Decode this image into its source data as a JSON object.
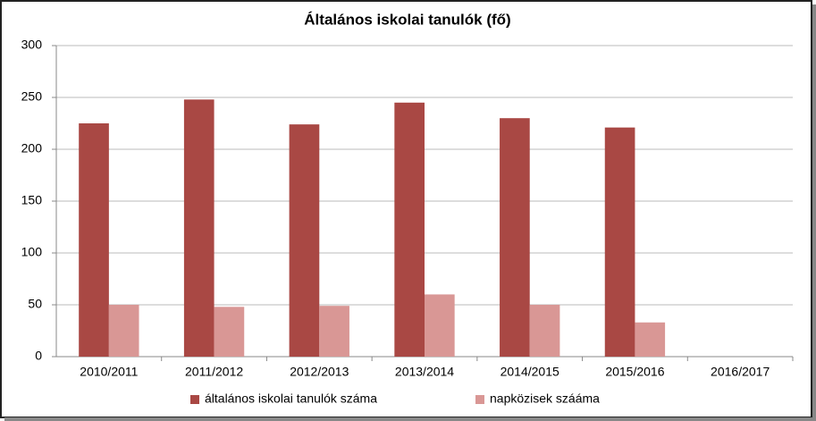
{
  "chart_data": {
    "type": "bar",
    "title": "Általános iskolai tanulók (fő)",
    "categories": [
      "2010/2011",
      "2011/2012",
      "2012/2013",
      "2013/2014",
      "2014/2015",
      "2015/2016",
      "2016/2017"
    ],
    "series": [
      {
        "name": "általános iskolai tanulók száma",
        "color": "#a94844",
        "values": [
          225,
          248,
          224,
          245,
          230,
          221,
          null
        ]
      },
      {
        "name": "napközisek szááma",
        "color": "#d99795",
        "values": [
          50,
          48,
          49,
          60,
          50,
          33,
          null
        ]
      }
    ],
    "ylim": [
      0,
      300
    ],
    "yticks": [
      0,
      50,
      100,
      150,
      200,
      250,
      300
    ],
    "grid": true,
    "legend": "bottom"
  }
}
